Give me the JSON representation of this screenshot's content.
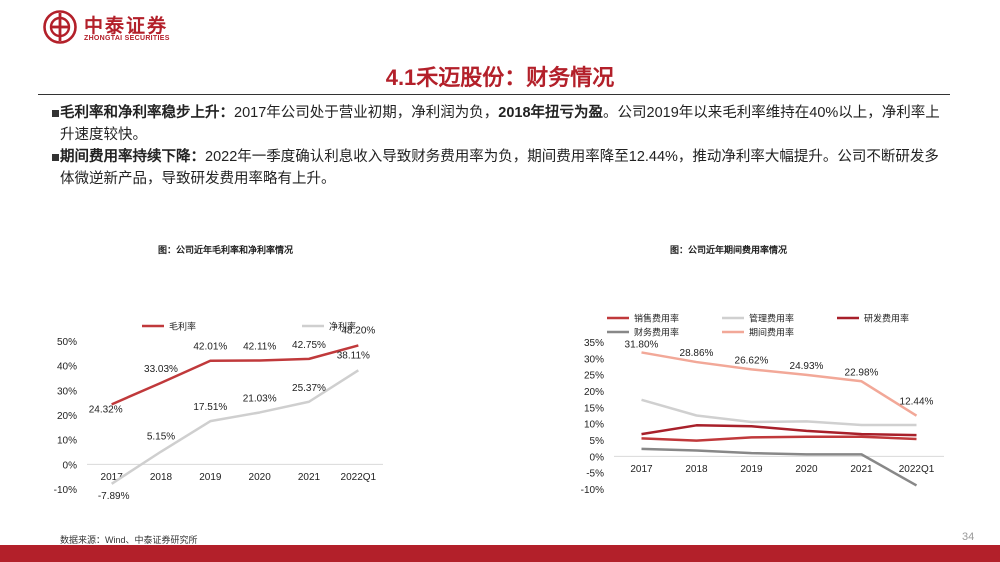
{
  "header": {
    "logo_cn": "中泰证券",
    "logo_en": "ZHONGTAI SECURITIES"
  },
  "title": "4.1禾迈股份：财务情况",
  "bullets": [
    {
      "lead": "毛利率和净利率稳步上升：",
      "text_a": "2017年公司处于营业初期，净利润为负，",
      "bold_mid": "2018年扭亏为盈",
      "text_b": "。公司2019年以来毛利率维持在40%以上，净利率上升速度较快。"
    },
    {
      "lead": "期间费用率持续下降：",
      "text": "2022年一季度确认利息收入导致财务费用率为负，期间费用率降至12.44%，推动净利率大幅提升。公司不断研发多体微逆新产品，导致研发费用率略有上升。"
    }
  ],
  "chart_data": [
    {
      "type": "line",
      "title": "图：公司近年毛利率和净利率情况",
      "categories": [
        "2017",
        "2018",
        "2019",
        "2020",
        "2021",
        "2022Q1"
      ],
      "ylim": [
        -10,
        50
      ],
      "yticks": [
        "50%",
        "40%",
        "30%",
        "20%",
        "10%",
        "0%",
        "-10%"
      ],
      "legend_position": "top",
      "series": [
        {
          "name": "毛利率",
          "color": "#c0393b",
          "values": [
            24.32,
            33.03,
            42.01,
            42.11,
            42.75,
            48.2
          ],
          "labels": [
            "24.32%",
            "33.03%",
            "42.01%",
            "42.11%",
            "42.75%",
            "48.20%"
          ]
        },
        {
          "name": "净利率",
          "color": "#cfcfcf",
          "values": [
            -7.89,
            5.15,
            17.51,
            21.03,
            25.37,
            38.11
          ],
          "labels": [
            "-7.89%",
            "5.15%",
            "17.51%",
            "21.03%",
            "25.37%",
            "38.11%"
          ]
        }
      ]
    },
    {
      "type": "line",
      "title": "图：公司近年期间费用率情况",
      "categories": [
        "2017",
        "2018",
        "2019",
        "2020",
        "2021",
        "2022Q1"
      ],
      "ylim": [
        -10,
        35
      ],
      "yticks": [
        "35%",
        "30%",
        "25%",
        "20%",
        "15%",
        "10%",
        "5%",
        "0%",
        "-5%",
        "-10%"
      ],
      "legend_position": "top",
      "series": [
        {
          "name": "销售费用率",
          "color": "#c0393b",
          "values": [
            5.5,
            4.8,
            5.8,
            6.0,
            6.0,
            5.3
          ]
        },
        {
          "name": "管理费用率",
          "color": "#d0d0d0",
          "values": [
            17.3,
            12.5,
            10.5,
            10.7,
            9.6,
            9.6
          ]
        },
        {
          "name": "研发费用率",
          "color": "#a8202a",
          "values": [
            6.8,
            9.5,
            9.2,
            7.8,
            6.8,
            6.5
          ]
        },
        {
          "name": "财务费用率",
          "color": "#888888",
          "values": [
            2.3,
            1.8,
            1.0,
            0.6,
            0.6,
            -8.9
          ]
        },
        {
          "name": "期间费用率",
          "color": "#f2a898",
          "values": [
            31.8,
            28.86,
            26.62,
            24.93,
            22.98,
            12.44
          ],
          "labels": [
            "31.80%",
            "28.86%",
            "26.62%",
            "24.93%",
            "22.98%",
            "12.44%"
          ]
        }
      ]
    }
  ],
  "footnote": "数据来源：Wind、中泰证券研究所",
  "page_number": "34"
}
